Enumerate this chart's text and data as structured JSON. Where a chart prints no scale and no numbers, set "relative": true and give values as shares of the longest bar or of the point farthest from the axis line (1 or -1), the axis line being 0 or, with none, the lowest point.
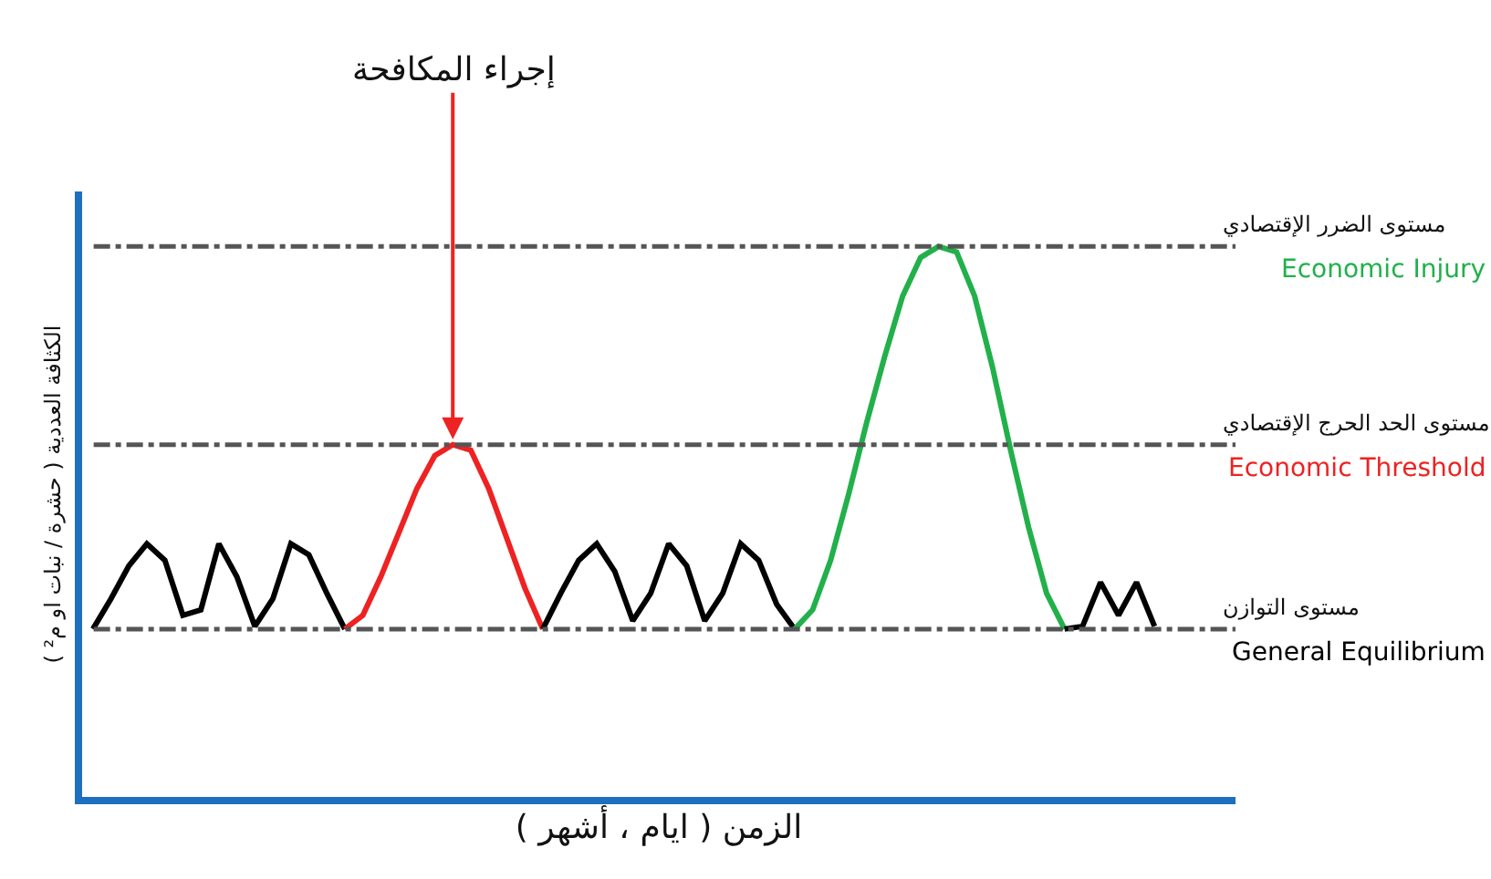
{
  "chart_data": {
    "type": "line",
    "relative": true,
    "xlabel": "الزمن ( ايام ، أشهر )",
    "ylabel": "الكثافة العددية ( حشرة / نبات او م² )",
    "categories": [
      null,
      null,
      null,
      null,
      null,
      null,
      null,
      null,
      null,
      null,
      null,
      null,
      null,
      null,
      null,
      null,
      null,
      null,
      null,
      null,
      null,
      null,
      null,
      null,
      null,
      null,
      null,
      null,
      null,
      null,
      null,
      null,
      null,
      null,
      null,
      null,
      null,
      null,
      null,
      null,
      null,
      null,
      null,
      null,
      null,
      null,
      null,
      null,
      null,
      null,
      null,
      null,
      null,
      null,
      null,
      null,
      null,
      null,
      null,
      null
    ],
    "series": [
      {
        "color": "#000000",
        "values": [
          0.305,
          0.36,
          0.42,
          0.46,
          0.43,
          0.33,
          0.34,
          0.46,
          0.4,
          0.31,
          0.36,
          0.46,
          0.44,
          0.37,
          0.305,
          null,
          null,
          null,
          null,
          null,
          null,
          null,
          null,
          null,
          null,
          null,
          null,
          null,
          null,
          null,
          null,
          null,
          null,
          null,
          null,
          null,
          null,
          null,
          null,
          null,
          null,
          null,
          null,
          null,
          null,
          null,
          null,
          null,
          null,
          null,
          null,
          null,
          null,
          null,
          null,
          null,
          null,
          null,
          null,
          null
        ]
      },
      {
        "color": "#ee2222",
        "values": [
          null,
          null,
          null,
          null,
          null,
          null,
          null,
          null,
          null,
          null,
          null,
          null,
          null,
          null,
          0.305,
          0.33,
          0.4,
          0.48,
          0.56,
          0.62,
          0.64,
          0.63,
          0.56,
          0.47,
          0.38,
          0.305,
          null,
          null,
          null,
          null,
          null,
          null,
          null,
          null,
          null,
          null,
          null,
          null,
          null,
          null,
          null,
          null,
          null,
          null,
          null,
          null,
          null,
          null,
          null,
          null,
          null,
          null,
          null,
          null,
          null,
          null,
          null,
          null,
          null,
          null
        ]
      },
      {
        "color": "#000000",
        "values": [
          null,
          null,
          null,
          null,
          null,
          null,
          null,
          null,
          null,
          null,
          null,
          null,
          null,
          null,
          null,
          null,
          null,
          null,
          null,
          null,
          null,
          null,
          null,
          null,
          null,
          0.305,
          0.37,
          0.43,
          0.46,
          0.41,
          0.32,
          0.37,
          0.46,
          0.42,
          0.32,
          0.37,
          0.46,
          0.43,
          0.35,
          0.305,
          null,
          null,
          null,
          null,
          null,
          null,
          null,
          null,
          null,
          null,
          null,
          null,
          null,
          null,
          null,
          null,
          null,
          null,
          null,
          null
        ]
      },
      {
        "color": "#22b04b",
        "values": [
          null,
          null,
          null,
          null,
          null,
          null,
          null,
          null,
          null,
          null,
          null,
          null,
          null,
          null,
          null,
          null,
          null,
          null,
          null,
          null,
          null,
          null,
          null,
          null,
          null,
          null,
          null,
          null,
          null,
          null,
          null,
          null,
          null,
          null,
          null,
          null,
          null,
          null,
          null,
          0.305,
          0.34,
          0.43,
          0.55,
          0.68,
          0.8,
          0.91,
          0.98,
          1.0,
          0.99,
          0.91,
          0.78,
          0.63,
          0.49,
          0.37,
          0.305,
          null,
          null,
          null,
          null,
          null
        ]
      },
      {
        "color": "#000000",
        "values": [
          null,
          null,
          null,
          null,
          null,
          null,
          null,
          null,
          null,
          null,
          null,
          null,
          null,
          null,
          null,
          null,
          null,
          null,
          null,
          null,
          null,
          null,
          null,
          null,
          null,
          null,
          null,
          null,
          null,
          null,
          null,
          null,
          null,
          null,
          null,
          null,
          null,
          null,
          null,
          null,
          null,
          null,
          null,
          null,
          null,
          null,
          null,
          null,
          null,
          null,
          null,
          null,
          null,
          null,
          0.305,
          0.31,
          0.39,
          0.33,
          0.39,
          0.31
        ]
      }
    ],
    "ref_lines": [
      {
        "axis": "y",
        "value": 1.0,
        "label": "مستوى الضرر الإقتصادي",
        "color": "#555555",
        "line_style": "dashdot"
      },
      {
        "axis": "y",
        "value": 0.64,
        "label": "مستوى الحد الحرج الإقتصادي",
        "color": "#555555",
        "line_style": "dashdot"
      },
      {
        "axis": "y",
        "value": 0.305,
        "label": "مستوى التوازن",
        "color": "#555555",
        "line_style": "dashdot"
      }
    ],
    "annotations": [
      {
        "text": "إجراء المكافحة",
        "y": 0.64
      },
      "Economic Injury",
      "Economic Threshold",
      "General Equilibrium"
    ],
    "marker": "none",
    "line_style": "solid"
  }
}
